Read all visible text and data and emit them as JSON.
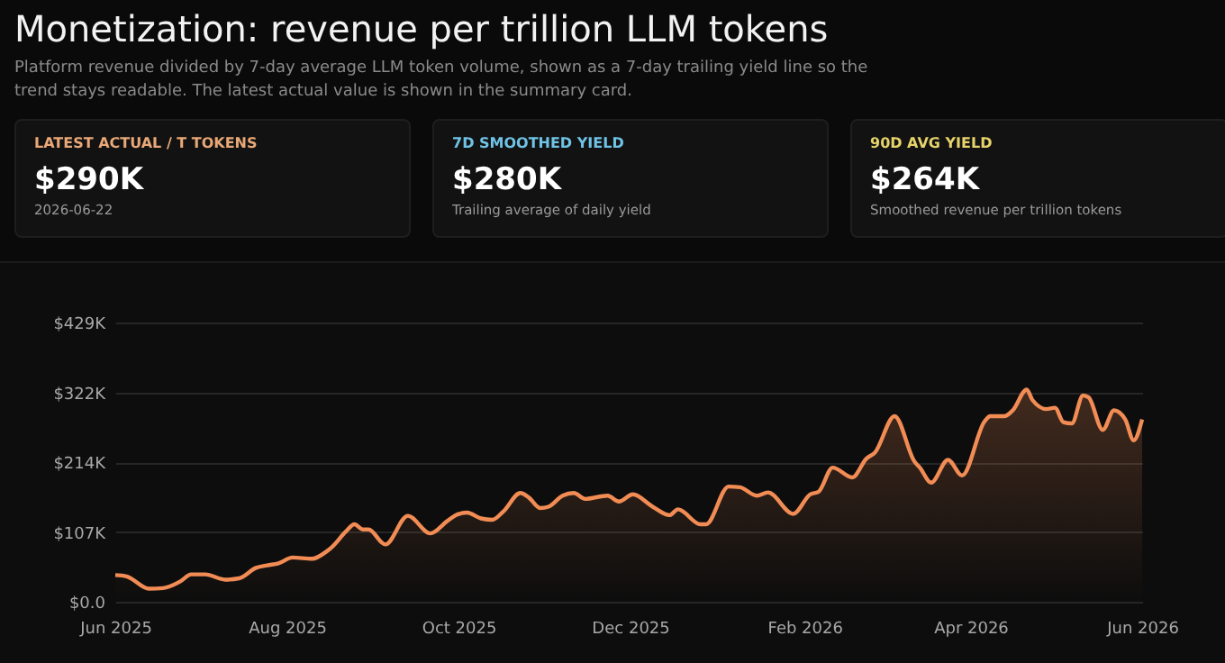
{
  "chart_data": [
    {
      "type": "other",
      "title": "LATEST ACTUAL / T TOKENS",
      "color": "#e9a877",
      "annotations": [
        "$290K",
        "2026-06-22"
      ]
    },
    {
      "type": "other",
      "title": "7D SMOOTHED YIELD",
      "color": "#6fc3e6",
      "annotations": [
        "$280K",
        "Trailing average of daily yield"
      ]
    },
    {
      "type": "other",
      "title": "90D AVG YIELD",
      "color": "#e6d36a",
      "annotations": [
        "$264K",
        "Smoothed revenue per trillion tokens"
      ]
    },
    {
      "type": "area",
      "title": "Monetization: revenue per trillion LLM tokens",
      "subtitle": "Platform revenue divided by 7-day average LLM token volume, shown as a 7-day trailing yield line so the trend stays readable. The latest actual value is shown in the summary card.",
      "x": [
        "2025-06-01",
        "2025-06-05",
        "2025-06-13",
        "2025-06-18",
        "2025-06-24",
        "2025-06-28",
        "2025-07-03",
        "2025-07-10",
        "2025-07-15",
        "2025-07-21",
        "2025-07-25",
        "2025-07-29",
        "2025-08-03",
        "2025-08-10",
        "2025-08-15",
        "2025-08-17",
        "2025-08-22",
        "2025-08-25",
        "2025-08-28",
        "2025-08-30",
        "2025-09-05",
        "2025-09-13",
        "2025-09-21",
        "2025-09-27",
        "2025-09-30",
        "2025-10-04",
        "2025-10-09",
        "2025-10-13",
        "2025-10-17",
        "2025-10-23",
        "2025-10-26",
        "2025-10-30",
        "2025-11-02",
        "2025-11-07",
        "2025-11-11",
        "2025-11-15",
        "2025-11-23",
        "2025-11-27",
        "2025-12-02",
        "2025-12-09",
        "2025-12-15",
        "2025-12-18",
        "2025-12-26",
        "2025-12-28",
        "2026-01-05",
        "2026-01-09",
        "2026-01-15",
        "2026-01-19",
        "2026-01-28",
        "2026-02-03",
        "2026-02-06",
        "2026-02-11",
        "2026-02-18",
        "2026-02-23",
        "2026-02-26",
        "2026-03-05",
        "2026-03-12",
        "2026-03-14",
        "2026-03-18",
        "2026-03-24",
        "2026-03-29",
        "2026-04-06",
        "2026-04-08",
        "2026-04-13",
        "2026-04-16",
        "2026-04-21",
        "2026-04-23",
        "2026-04-28",
        "2026-05-01",
        "2026-05-04",
        "2026-05-07",
        "2026-05-11",
        "2026-05-13",
        "2026-05-18",
        "2026-05-22",
        "2026-05-26",
        "2026-05-29",
        "2026-06-01"
      ],
      "series": [
        {
          "color": "#f28c55",
          "values": [
            41,
            39,
            20,
            21,
            31,
            42,
            42,
            34,
            36,
            52,
            56,
            59,
            68,
            66,
            77,
            84,
            108,
            119,
            111,
            111,
            88,
            132,
            105,
            124,
            133,
            137,
            128,
            126,
            139,
            167,
            160,
            144,
            146,
            163,
            167,
            158,
            163,
            154,
            165,
            146,
            133,
            142,
            119,
            119,
            177,
            176,
            163,
            168,
            135,
            165,
            169,
            206,
            191,
            220,
            229,
            285,
            216,
            206,
            183,
            218,
            194,
            277,
            285,
            285,
            294,
            326,
            310,
            296,
            298,
            276,
            274,
            317,
            314,
            264,
            294,
            280,
            248,
            280
          ]
        }
      ],
      "xlim": [
        "2025-06-01",
        "2026-06-01"
      ],
      "xticks": [
        {
          "value": "2025-06-01",
          "label": "Jun 2025"
        },
        {
          "value": "2025-08-01",
          "label": "Aug 2025"
        },
        {
          "value": "2025-10-01",
          "label": "Oct 2025"
        },
        {
          "value": "2025-12-01",
          "label": "Dec 2025"
        },
        {
          "value": "2026-02-01",
          "label": "Feb 2026"
        },
        {
          "value": "2026-04-01",
          "label": "Apr 2026"
        },
        {
          "value": "2026-06-01",
          "label": "Jun 2026"
        }
      ],
      "ylim": [
        0,
        429
      ],
      "yticks": [
        {
          "value": 0,
          "label": "$0.0"
        },
        {
          "value": 107.25,
          "label": "$107K"
        },
        {
          "value": 214.5,
          "label": "$214K"
        },
        {
          "value": 321.75,
          "label": "$322K"
        },
        {
          "value": 429,
          "label": "$429K"
        }
      ],
      "grid": "y"
    }
  ]
}
